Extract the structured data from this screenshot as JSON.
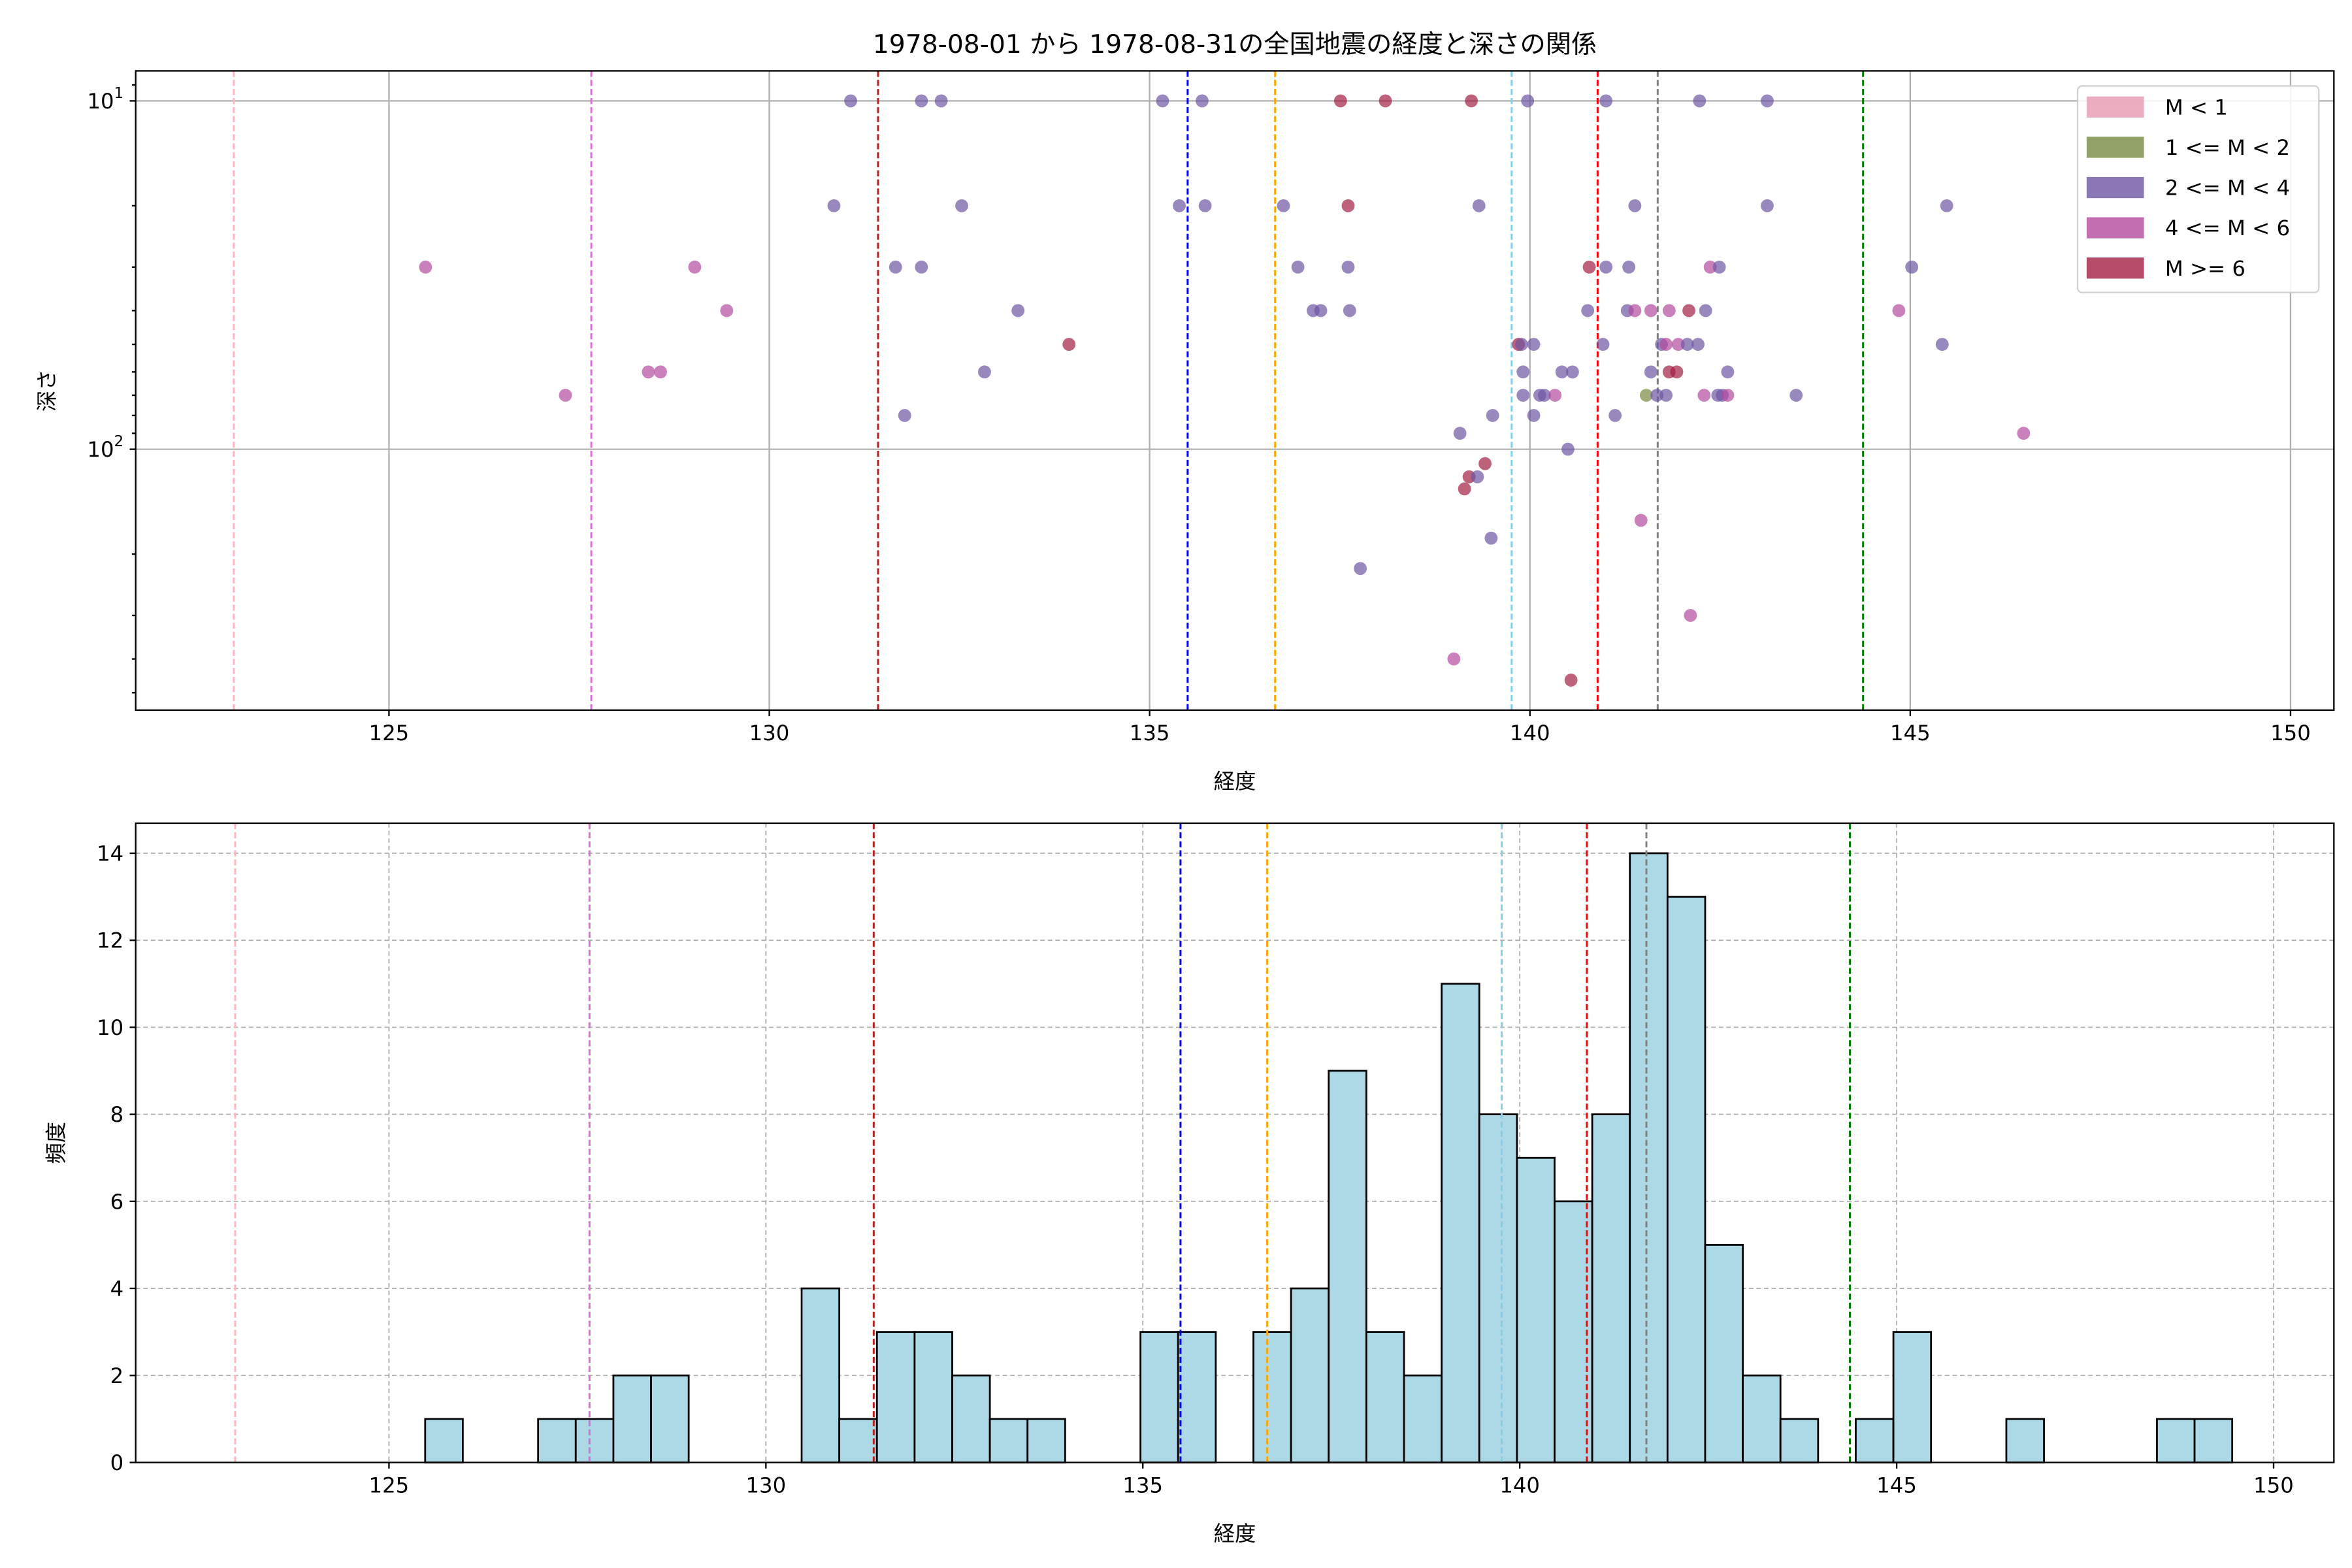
{
  "chart_data": [
    {
      "type": "scatter",
      "title": "1978-08-01 から 1978-08-31の全国地震の経度と深さの関係",
      "xlabel": "経度",
      "ylabel": "深さ",
      "xlim": [
        121.67,
        150.57
      ],
      "ylim": [
        8.2,
        561
      ],
      "yscale": "log",
      "yinverted": true,
      "grid": true,
      "xticks": [
        125,
        130,
        135,
        140,
        145,
        150
      ],
      "xtick_labels": [
        "125",
        "130",
        "135",
        "140",
        "145",
        "150"
      ],
      "yticks": [
        10,
        100
      ],
      "ytick_labels": [
        {
          "base": "10",
          "exp": "1"
        },
        {
          "base": "10",
          "exp": "2"
        }
      ],
      "legend_position": "top-right",
      "classes": [
        {
          "label": "M < 1",
          "color": "#e799b0"
        },
        {
          "label": "1 <= M < 2",
          "color": "#778a41"
        },
        {
          "label": "2 <= M < 4",
          "color": "#6e55a3"
        },
        {
          "label": "4 <= M < 6",
          "color": "#b44a9c"
        },
        {
          "label": "M >= 6",
          "color": "#a31e43"
        }
      ],
      "points": [
        [
          131.07,
          10,
          2
        ],
        [
          132.0,
          10,
          2
        ],
        [
          132.26,
          10,
          2
        ],
        [
          135.17,
          10,
          2
        ],
        [
          135.69,
          10,
          2
        ],
        [
          137.51,
          10,
          4
        ],
        [
          138.1,
          10,
          4
        ],
        [
          139.23,
          10,
          4
        ],
        [
          139.97,
          10,
          2
        ],
        [
          141.0,
          10,
          2
        ],
        [
          142.23,
          10,
          2
        ],
        [
          143.12,
          10,
          2
        ],
        [
          130.85,
          20,
          2
        ],
        [
          132.53,
          20,
          2
        ],
        [
          135.39,
          20,
          2
        ],
        [
          135.73,
          20,
          2
        ],
        [
          136.76,
          20,
          2
        ],
        [
          137.61,
          20,
          4
        ],
        [
          139.33,
          20,
          2
        ],
        [
          141.38,
          20,
          2
        ],
        [
          143.12,
          20,
          2
        ],
        [
          145.48,
          20,
          2
        ],
        [
          125.48,
          30,
          3
        ],
        [
          129.02,
          30,
          3
        ],
        [
          131.66,
          30,
          2
        ],
        [
          132.0,
          30,
          2
        ],
        [
          136.95,
          30,
          2
        ],
        [
          137.61,
          30,
          2
        ],
        [
          140.78,
          30,
          4
        ],
        [
          141.0,
          30,
          2
        ],
        [
          141.3,
          30,
          2
        ],
        [
          142.37,
          30,
          3
        ],
        [
          142.49,
          30,
          2
        ],
        [
          145.02,
          30,
          2
        ],
        [
          129.44,
          40,
          3
        ],
        [
          133.27,
          40,
          2
        ],
        [
          137.15,
          40,
          2
        ],
        [
          137.25,
          40,
          2
        ],
        [
          137.63,
          40,
          2
        ],
        [
          140.76,
          40,
          2
        ],
        [
          141.28,
          40,
          2
        ],
        [
          141.38,
          40,
          3
        ],
        [
          141.59,
          40,
          3
        ],
        [
          141.83,
          40,
          3
        ],
        [
          142.09,
          40,
          4
        ],
        [
          142.31,
          40,
          2
        ],
        [
          144.85,
          40,
          3
        ],
        [
          133.94,
          50,
          4
        ],
        [
          139.85,
          50,
          4
        ],
        [
          139.89,
          50,
          2
        ],
        [
          140.05,
          50,
          2
        ],
        [
          140.96,
          50,
          2
        ],
        [
          141.73,
          50,
          2
        ],
        [
          141.79,
          50,
          3
        ],
        [
          141.95,
          50,
          3
        ],
        [
          142.07,
          50,
          2
        ],
        [
          142.21,
          50,
          2
        ],
        [
          145.42,
          50,
          2
        ],
        [
          128.41,
          60,
          3
        ],
        [
          128.57,
          60,
          3
        ],
        [
          132.83,
          60,
          2
        ],
        [
          139.91,
          60,
          2
        ],
        [
          140.42,
          60,
          2
        ],
        [
          140.56,
          60,
          2
        ],
        [
          141.59,
          60,
          2
        ],
        [
          141.83,
          60,
          4
        ],
        [
          141.93,
          60,
          4
        ],
        [
          142.6,
          60,
          2
        ],
        [
          127.32,
          70,
          3
        ],
        [
          139.91,
          70,
          2
        ],
        [
          140.13,
          70,
          2
        ],
        [
          140.19,
          70,
          2
        ],
        [
          140.33,
          70,
          3
        ],
        [
          141.53,
          70,
          1
        ],
        [
          141.67,
          70,
          2
        ],
        [
          141.79,
          70,
          2
        ],
        [
          142.29,
          70,
          3
        ],
        [
          142.47,
          70,
          2
        ],
        [
          142.53,
          70,
          2
        ],
        [
          142.6,
          70,
          3
        ],
        [
          143.5,
          70,
          2
        ],
        [
          131.78,
          80,
          2
        ],
        [
          139.51,
          80,
          2
        ],
        [
          140.05,
          80,
          2
        ],
        [
          141.12,
          80,
          2
        ],
        [
          139.08,
          90,
          2
        ],
        [
          146.49,
          90,
          3
        ],
        [
          140.5,
          100,
          2
        ],
        [
          139.41,
          110,
          4
        ],
        [
          139.2,
          120,
          4
        ],
        [
          139.31,
          120,
          2
        ],
        [
          139.14,
          130,
          4
        ],
        [
          141.46,
          160,
          3
        ],
        [
          139.49,
          180,
          2
        ],
        [
          137.77,
          220,
          2
        ],
        [
          142.11,
          300,
          3
        ],
        [
          139.0,
          400,
          3
        ],
        [
          140.54,
          460,
          4
        ]
      ]
    },
    {
      "type": "bar",
      "subtype": "histogram",
      "title": "",
      "xlabel": "経度",
      "ylabel": "頻度",
      "xlim": [
        121.64,
        150.8
      ],
      "ylim": [
        0,
        14.69
      ],
      "grid": true,
      "xticks": [
        125,
        130,
        135,
        140,
        145,
        150
      ],
      "xtick_labels": [
        "125",
        "130",
        "135",
        "140",
        "145",
        "150"
      ],
      "yticks": [
        0,
        2,
        4,
        6,
        8,
        10,
        12,
        14
      ],
      "ytick_labels": [
        "0",
        "2",
        "4",
        "6",
        "8",
        "10",
        "12",
        "14"
      ],
      "bar_color": "#add8e6",
      "bin_start": 125.48,
      "bin_width": 0.4994,
      "counts": [
        1,
        0,
        0,
        1,
        1,
        2,
        2,
        0,
        0,
        0,
        4,
        1,
        3,
        3,
        2,
        1,
        1,
        0,
        0,
        3,
        3,
        0,
        3,
        4,
        9,
        3,
        2,
        11,
        8,
        7,
        6,
        8,
        14,
        13,
        5,
        2,
        1,
        0,
        1,
        3,
        0,
        0,
        1,
        0,
        0,
        0,
        1,
        1
      ]
    }
  ],
  "reference_lines": [
    {
      "lon": 122.96,
      "color": "#ffb6c1"
    },
    {
      "lon": 127.66,
      "color": "#da70d6"
    },
    {
      "lon": 131.43,
      "color": "#b22222"
    },
    {
      "lon": 135.5,
      "color": "#0000ff"
    },
    {
      "lon": 136.65,
      "color": "#ffa500"
    },
    {
      "lon": 139.76,
      "color": "#87ceeb"
    },
    {
      "lon": 140.89,
      "color": "#ff0000"
    },
    {
      "lon": 141.68,
      "color": "#808080"
    },
    {
      "lon": 144.38,
      "color": "#008000"
    }
  ]
}
